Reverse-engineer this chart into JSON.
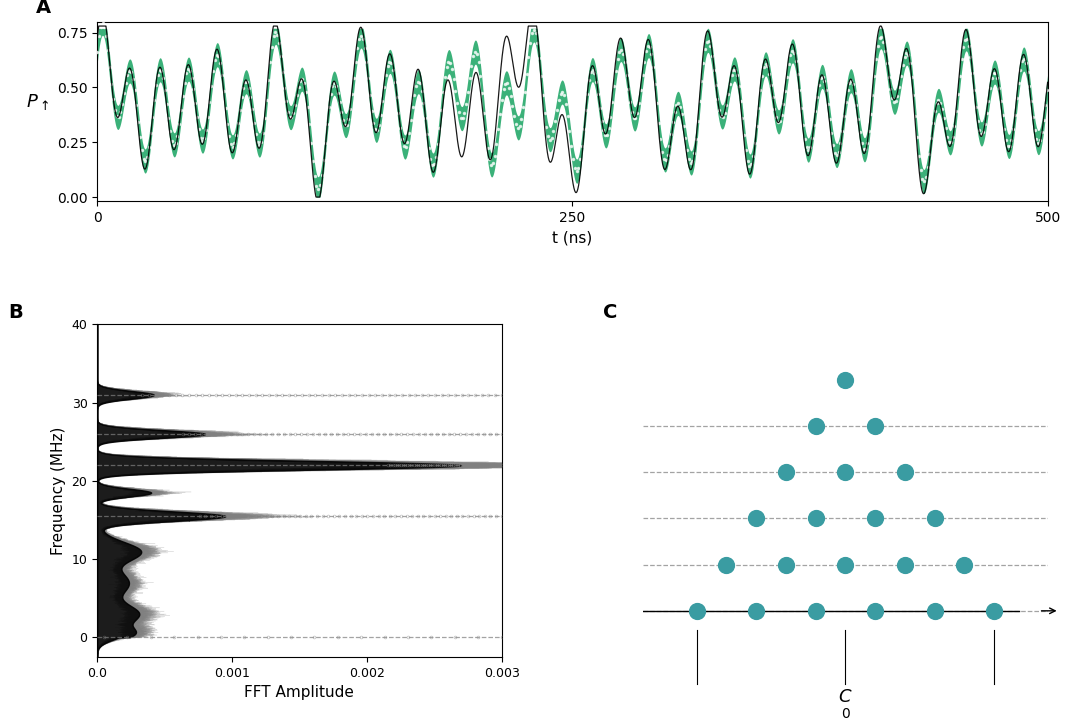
{
  "panel_A": {
    "xlim": [
      0,
      500
    ],
    "ylim": [
      -0.02,
      0.8
    ],
    "yticks": [
      0.0,
      0.25,
      0.5,
      0.75
    ],
    "xticks": [
      0,
      250,
      500
    ],
    "xlabel": "t (ns)",
    "green_color": "#2aab6e",
    "label": "A",
    "f_main": 0.066,
    "f_beat1": 0.022,
    "f_beat2": 0.031,
    "f_beat3": 0.015
  },
  "panel_B": {
    "xlim": [
      0,
      0.003
    ],
    "ylim": [
      -2.5,
      40
    ],
    "yticks": [
      0,
      10,
      20,
      30,
      40
    ],
    "xticks": [
      0.0,
      0.001,
      0.002,
      0.003
    ],
    "xlabel": "FFT Amplitude",
    "ylabel": "Frequency (MHz)",
    "dashed_freqs": [
      0,
      15.5,
      22.0,
      26.0,
      31.0
    ],
    "peak_data": [
      [
        0.5,
        0.00018,
        0.8
      ],
      [
        3.0,
        0.00025,
        1.2
      ],
      [
        7.0,
        0.0002,
        1.5
      ],
      [
        11.0,
        0.0003,
        1.2
      ],
      [
        15.5,
        0.00095,
        0.6
      ],
      [
        18.5,
        0.0004,
        0.5
      ],
      [
        22.0,
        0.0027,
        0.55
      ],
      [
        26.0,
        0.0008,
        0.5
      ],
      [
        31.0,
        0.00042,
        0.5
      ]
    ],
    "circle_freqs": [
      0,
      15.5,
      22.0,
      26.0,
      31.0
    ],
    "circle_amp_starts": [
      5e-05,
      0.00095,
      0.0027,
      0.0008,
      0.00042
    ],
    "label": "B"
  },
  "panel_C": {
    "dot_color": "#3a9ca2",
    "dot_size": 130,
    "xlim": [
      -6.8,
      6.8
    ],
    "ylim": [
      -1.0,
      6.2
    ],
    "dots": [
      [
        -5,
        0
      ],
      [
        -3,
        0
      ],
      [
        -1,
        0
      ],
      [
        1,
        0
      ],
      [
        3,
        0
      ],
      [
        5,
        0
      ],
      [
        -4,
        1
      ],
      [
        -2,
        1
      ],
      [
        0,
        1
      ],
      [
        2,
        1
      ],
      [
        4,
        1
      ],
      [
        -3,
        2
      ],
      [
        -1,
        2
      ],
      [
        1,
        2
      ],
      [
        3,
        2
      ],
      [
        -2,
        3
      ],
      [
        0,
        3
      ],
      [
        2,
        3
      ],
      [
        -1,
        4
      ],
      [
        1,
        4
      ],
      [
        0,
        5
      ]
    ],
    "dashed_y": [
      0,
      1,
      2,
      3,
      4
    ],
    "label": "C"
  }
}
